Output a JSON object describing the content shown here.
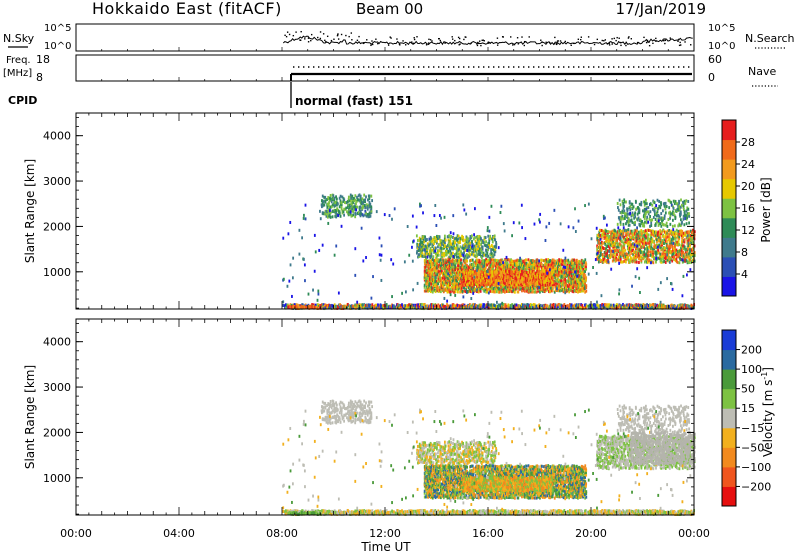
{
  "header": {
    "station": "Hokkaido East (fitACF)",
    "beam": "Beam 00",
    "date": "17/Jan/2019"
  },
  "panels": {
    "nsky_label": "N.Sky",
    "nsearch_label": "N.Search",
    "log_ticks": [
      "10^5",
      "10^0"
    ],
    "freq_label_1": "Freq.",
    "freq_label_2": "[MHz]",
    "freq_ticks": [
      "18",
      "8"
    ],
    "nave_label": "Nave",
    "nave_ticks": [
      "60",
      "0"
    ],
    "cpid_label": "CPID",
    "cpid_text": "normal (fast) 151"
  },
  "colors": {
    "power_scale": [
      "#1a14e6",
      "#2b4fb5",
      "#3f7a8c",
      "#2e8b57",
      "#7dc242",
      "#e6c800",
      "#f29a1e",
      "#f06a1a",
      "#e61e1e"
    ],
    "velocity_scale": [
      "#e60f0f",
      "#f0551e",
      "#f28a1e",
      "#f2b01e",
      "#bdbdb4",
      "#7dc242",
      "#4a9a3a",
      "#2a6aa0",
      "#1a3cd6"
    ],
    "ground_scatter": "#b4b4ac"
  },
  "chart_data": [
    {
      "type": "heatmap",
      "name": "power",
      "ylabel": "Slant Range [km]",
      "y_ticks": [
        1000,
        2000,
        3000,
        4000
      ],
      "ylim": [
        180,
        4500
      ],
      "x_ticks": [
        "00:00",
        "04:00",
        "08:00",
        "12:00",
        "16:00",
        "20:00",
        "00:00"
      ],
      "xlim_hours": [
        0,
        24
      ],
      "colorbar_label": "Power [dB]",
      "colorbar_ticks": [
        4,
        8,
        12,
        16,
        20,
        24,
        28
      ],
      "zlim": [
        0,
        30
      ]
    },
    {
      "type": "heatmap",
      "name": "velocity",
      "ylabel": "Slant Range [km]",
      "y_ticks": [
        1000,
        2000,
        3000,
        4000
      ],
      "ylim": [
        180,
        4500
      ],
      "x_ticks": [
        "00:00",
        "04:00",
        "08:00",
        "12:00",
        "16:00",
        "20:00",
        "00:00"
      ],
      "xlim_hours": [
        0,
        24
      ],
      "xlabel": "Time UT",
      "colorbar_label": "Velocity [m s^-1]",
      "colorbar_ticks": [
        200,
        100,
        50,
        15,
        -15,
        -50,
        -100,
        -200
      ],
      "zlim": [
        -250,
        250
      ]
    }
  ]
}
